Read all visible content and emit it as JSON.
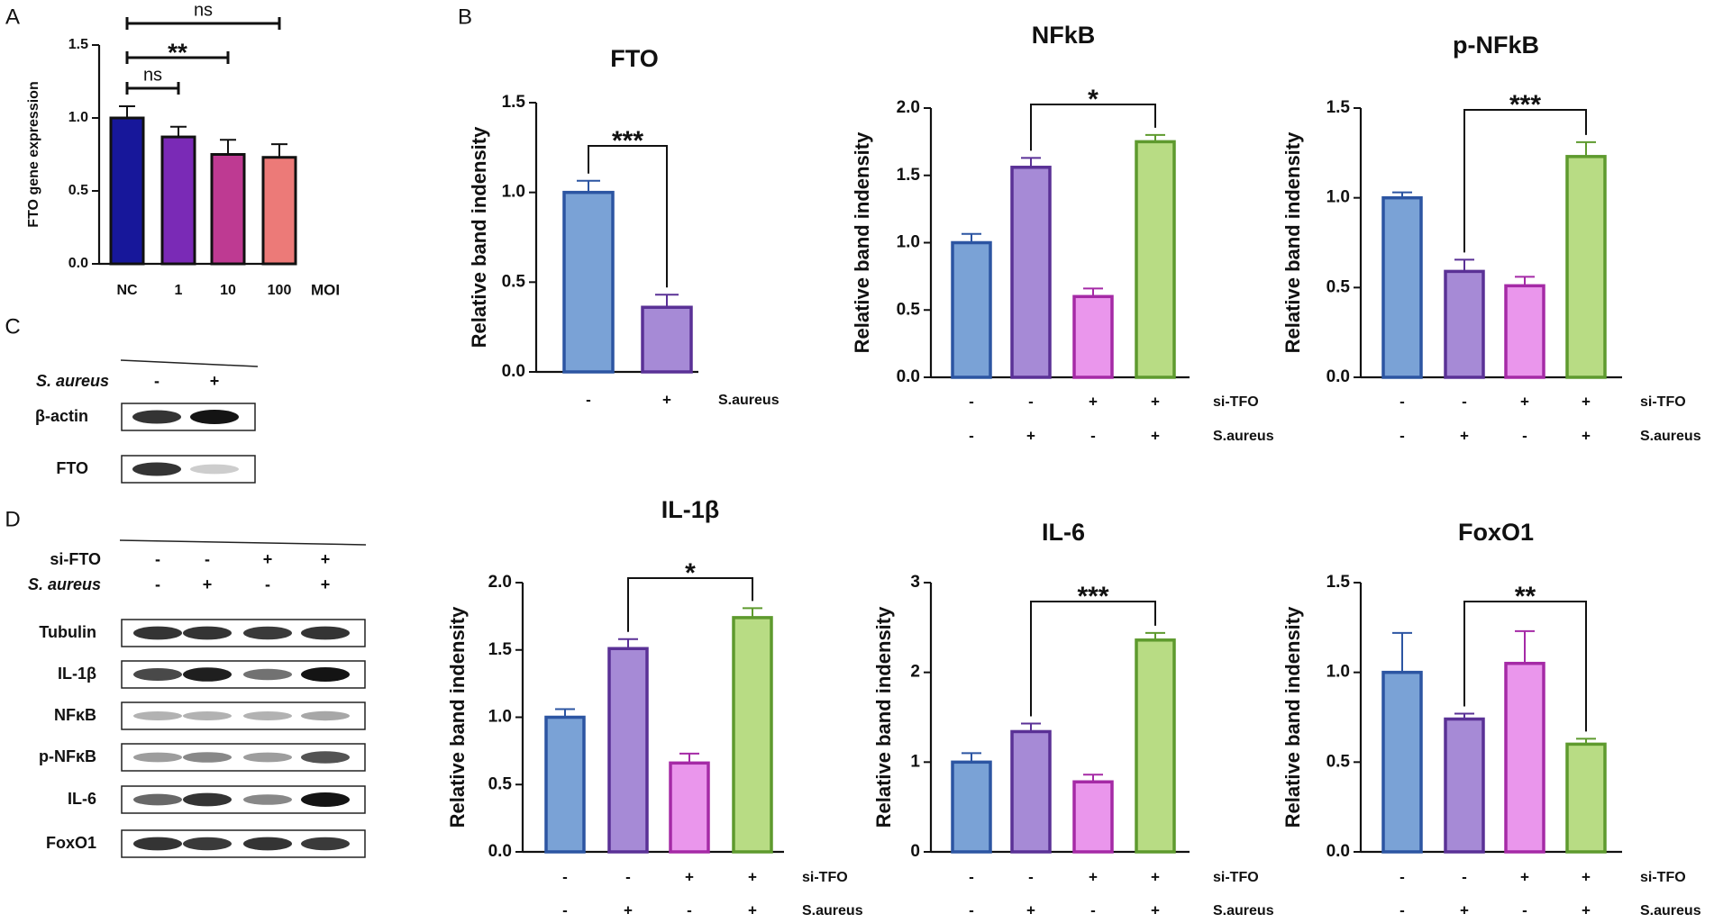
{
  "panel_labels": {
    "A": "A",
    "B": "B",
    "C": "C",
    "D": "D"
  },
  "colors": {
    "nc_navy": "#17179a",
    "moi_purple": "#7a2ab6",
    "moi_magenta": "#be3a92",
    "moi_salmon": "#ec7a78",
    "ctrl_fill": "#7aa2d6",
    "ctrl_edge": "#2c55a2",
    "aureus_fill": "#a68ad6",
    "aureus_edge": "#5a3196",
    "sifto_fill": "#ea96ec",
    "sifto_edge": "#a52aa6",
    "both_fill": "#b8dc84",
    "both_edge": "#5e9a2e"
  },
  "chart_data": [
    {
      "id": "A",
      "type": "bar",
      "title": "",
      "ylabel": "FTO gene expression",
      "xlabel": "MOI",
      "categories": [
        "NC",
        "1",
        "10",
        "100"
      ],
      "values": [
        1.0,
        0.87,
        0.75,
        0.73
      ],
      "errors": [
        0.08,
        0.07,
        0.1,
        0.09
      ],
      "ylim": [
        0,
        1.5
      ],
      "yticks": [
        "0.0",
        "0.5",
        "1.0",
        "1.5"
      ],
      "significance": [
        {
          "from": 0,
          "to": 1,
          "label": "ns"
        },
        {
          "from": 0,
          "to": 2,
          "label": "**"
        },
        {
          "from": 0,
          "to": 3,
          "label": "ns"
        }
      ]
    },
    {
      "id": "FTO",
      "type": "bar",
      "title": "FTO",
      "ylabel": "Relative band indensity",
      "ylim": [
        0,
        1.5
      ],
      "yticks": [
        "0.0",
        "0.5",
        "1.0",
        "1.5"
      ],
      "values": [
        1.0,
        0.36
      ],
      "errors": [
        0.065,
        0.07
      ],
      "row_labels": [
        "S.aureus"
      ],
      "rows": [
        [
          "-",
          "+"
        ]
      ],
      "significance": [
        {
          "from": 0,
          "to": 1,
          "label": "***"
        }
      ]
    },
    {
      "id": "NFkB",
      "type": "bar",
      "title": "NFkB",
      "ylabel": "Relative band indensity",
      "ylim": [
        0,
        2.0
      ],
      "yticks": [
        "0.0",
        "0.5",
        "1.0",
        "1.5",
        "2.0"
      ],
      "values": [
        1.0,
        1.56,
        0.6,
        1.75
      ],
      "errors": [
        0.065,
        0.07,
        0.06,
        0.05
      ],
      "row_labels": [
        "si-TFO",
        "S.aureus"
      ],
      "rows": [
        [
          "-",
          "-",
          "+",
          "+"
        ],
        [
          "-",
          "+",
          "-",
          "+"
        ]
      ],
      "significance": [
        {
          "from": 1,
          "to": 3,
          "label": "*"
        }
      ]
    },
    {
      "id": "p-NFkB",
      "type": "bar",
      "title": "p-NFkB",
      "ylabel": "Relative band indensity",
      "ylim": [
        0,
        1.5
      ],
      "yticks": [
        "0.0",
        "0.5",
        "1.0",
        "1.5"
      ],
      "values": [
        1.0,
        0.59,
        0.51,
        1.23
      ],
      "errors": [
        0.03,
        0.065,
        0.05,
        0.08
      ],
      "row_labels": [
        "si-TFO",
        "S.aureus"
      ],
      "rows": [
        [
          "-",
          "-",
          "+",
          "+"
        ],
        [
          "-",
          "+",
          "-",
          "+"
        ]
      ],
      "significance": [
        {
          "from": 1,
          "to": 3,
          "label": "***"
        }
      ]
    },
    {
      "id": "IL-1b",
      "type": "bar",
      "title": "IL-1β",
      "ylabel": "Relative band indensity",
      "ylim": [
        0,
        2.0
      ],
      "yticks": [
        "0.0",
        "0.5",
        "1.0",
        "1.5",
        "2.0"
      ],
      "values": [
        1.0,
        1.51,
        0.66,
        1.74
      ],
      "errors": [
        0.06,
        0.07,
        0.07,
        0.07
      ],
      "row_labels": [
        "si-TFO",
        "S.aureus"
      ],
      "rows": [
        [
          "-",
          "-",
          "+",
          "+"
        ],
        [
          "-",
          "+",
          "-",
          "+"
        ]
      ],
      "significance": [
        {
          "from": 1,
          "to": 3,
          "label": "*"
        }
      ]
    },
    {
      "id": "IL-6",
      "type": "bar",
      "title": "IL-6",
      "ylabel": "Relative band indensity",
      "ylim": [
        0,
        3
      ],
      "yticks": [
        "0",
        "1",
        "2",
        "3"
      ],
      "values": [
        1.0,
        1.34,
        0.78,
        2.36
      ],
      "errors": [
        0.1,
        0.09,
        0.08,
        0.08
      ],
      "row_labels": [
        "si-TFO",
        "S.aureus"
      ],
      "rows": [
        [
          "-",
          "-",
          "+",
          "+"
        ],
        [
          "-",
          "+",
          "-",
          "+"
        ]
      ],
      "significance": [
        {
          "from": 1,
          "to": 3,
          "label": "***"
        }
      ]
    },
    {
      "id": "FoxO1",
      "type": "bar",
      "title": "FoxO1",
      "ylabel": "Relative band indensity",
      "ylim": [
        0,
        1.5
      ],
      "yticks": [
        "0.0",
        "0.5",
        "1.0",
        "1.5"
      ],
      "values": [
        1.0,
        0.74,
        1.05,
        0.6
      ],
      "errors": [
        0.22,
        0.03,
        0.18,
        0.03
      ],
      "row_labels": [
        "si-TFO",
        "S.aureus"
      ],
      "rows": [
        [
          "-",
          "-",
          "+",
          "+"
        ],
        [
          "-",
          "+",
          "-",
          "+"
        ]
      ],
      "significance": [
        {
          "from": 1,
          "to": 3,
          "label": "**"
        }
      ]
    }
  ],
  "blot_C": {
    "treatment_label": "S. aureus",
    "lanes": [
      "-",
      "+"
    ],
    "bands": [
      {
        "label": "β-actin",
        "intensities": [
          0.85,
          1.0
        ]
      },
      {
        "label": "FTO",
        "intensities": [
          0.85,
          0.12
        ]
      }
    ]
  },
  "blot_D": {
    "treatment_labels": [
      "si-FTO",
      "S. aureus"
    ],
    "lanes": [
      [
        "-",
        "-",
        "+",
        "+"
      ],
      [
        "-",
        "+",
        "-",
        "+"
      ]
    ],
    "bands": [
      {
        "label": "Tubulin",
        "intensities": [
          0.85,
          0.85,
          0.82,
          0.85
        ]
      },
      {
        "label": "IL-1β",
        "intensities": [
          0.75,
          0.95,
          0.55,
          1.0
        ]
      },
      {
        "label": "NFκB",
        "intensities": [
          0.25,
          0.25,
          0.25,
          0.3
        ]
      },
      {
        "label": "p-NFκB",
        "intensities": [
          0.35,
          0.45,
          0.35,
          0.7
        ]
      },
      {
        "label": "IL-6",
        "intensities": [
          0.6,
          0.85,
          0.45,
          1.0
        ]
      },
      {
        "label": "FoxO1",
        "intensities": [
          0.85,
          0.82,
          0.85,
          0.82
        ]
      }
    ]
  }
}
